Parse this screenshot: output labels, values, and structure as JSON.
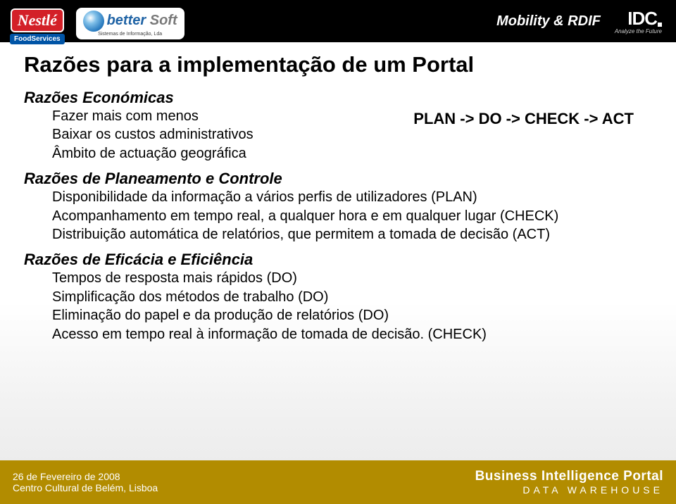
{
  "topbar": {
    "title": "Mobility & RDIF",
    "idc_name": "IDC",
    "idc_tag": "Analyze the Future"
  },
  "logos": {
    "nestle": "Nestlé",
    "foodservices": "FoodServices",
    "bettersoft_better": "better",
    "bettersoft_soft": " Soft",
    "bettersoft_sub": "Sistemas de Informação, Lda"
  },
  "title": "Razões para a implementação de um Portal",
  "plan_cycle": "PLAN -> DO -> CHECK -> ACT",
  "sect1": {
    "heading": "Razões Económicas",
    "l1": "Fazer mais com menos",
    "l2": "Baixar os custos administrativos",
    "l3": "Âmbito de actuação  geográfica"
  },
  "sect2": {
    "heading": "Razões de Planeamento e Controle",
    "l1": "Disponibilidade da informação a vários perfis de utilizadores (PLAN)",
    "l2": "Acompanhamento em tempo real, a qualquer hora e em qualquer lugar (CHECK)",
    "l3": "Distribuição automática de relatórios, que permitem a tomada de decisão (ACT)"
  },
  "sect3": {
    "heading": "Razões de Eficácia e Eficiência",
    "l1": "Tempos de resposta mais rápidos (DO)",
    "l2": "Simplificação dos métodos de trabalho (DO)",
    "l3": "Eliminação do papel e da produção de relatórios (DO)",
    "l4": "Acesso em tempo real à informação de tomada de decisão. (CHECK)"
  },
  "bottom": {
    "date": "26 de Fevereiro de 2008",
    "venue": "Centro Cultural de Belém, Lisboa",
    "product_main": "Business Intelligence Portal",
    "product_sub": "DATA  WAREHOUSE"
  },
  "colors": {
    "topbar_bg": "#000000",
    "bottombar_bg": "#b28c00",
    "nestle_red": "#d32028",
    "foodservices_blue": "#0054a6",
    "bettersoft_blue": "#1f63a5",
    "text": "#000000"
  }
}
